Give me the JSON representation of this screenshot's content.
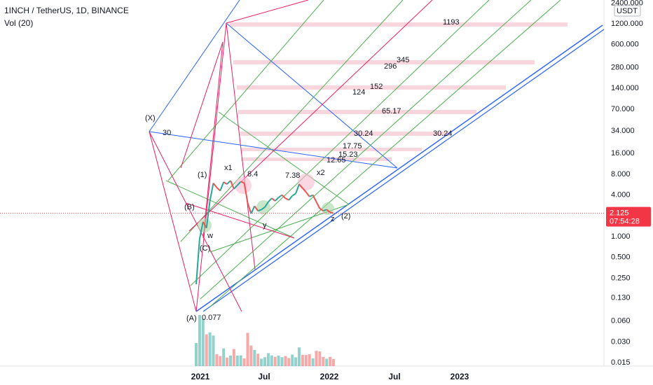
{
  "header": {
    "title": "1INCH / TetherUS, 1D, BINANCE",
    "volume_label": "Vol (20)"
  },
  "price_axis": {
    "currency_label": "USDT",
    "current_price": "2.125",
    "countdown": "07:54:28",
    "current_price_color": "#f23645"
  },
  "chart_data": {
    "type": "line",
    "scale": "log",
    "ylim": [
      0.012,
      2700
    ],
    "y_ticks": [
      "2400.000",
      "1200.000",
      "600.000",
      "280.000",
      "140.000",
      "70.000",
      "34.000",
      "16.000",
      "8.000",
      "4.000",
      "2.000",
      "1.000",
      "0.500",
      "0.250",
      "0.130",
      "0.060",
      "0.030",
      "0.015"
    ],
    "x_ticks": [
      "2021",
      "Jul",
      "2022",
      "Jul",
      "2023"
    ],
    "current_price": 2.125,
    "target_levels": [
      {
        "label": "1193",
        "value": 1193
      },
      {
        "label": "345",
        "value": 345
      },
      {
        "label": "296",
        "value": 296
      },
      {
        "label": "152",
        "value": 152
      },
      {
        "label": "124",
        "value": 124
      },
      {
        "label": "65.17",
        "value": 65.17
      },
      {
        "label": "30.24",
        "value": 30.24
      },
      {
        "label": "30.24",
        "value": 30.24
      },
      {
        "label": "17.75",
        "value": 17.75
      },
      {
        "label": "15.23",
        "value": 15.23
      },
      {
        "label": "12.65",
        "value": 12.65
      }
    ],
    "wave_labels": [
      "(X)",
      "30",
      "(1)",
      "x1",
      "8.4",
      "7.38",
      "x2",
      "(B)",
      "w",
      "(C)",
      "y",
      "z",
      "(2)",
      "(A)",
      "0.077"
    ],
    "series": [
      {
        "values": [
          0.2,
          0.9,
          1.6,
          1.3,
          3.2,
          5.8,
          5.0,
          4.5,
          6.0,
          5.6,
          6.3,
          4.8,
          5.4,
          6.1,
          5.8,
          3.0,
          2.1,
          2.7,
          2.3,
          2.4,
          2.6,
          3.1,
          3.5,
          3.2,
          3.6,
          3.9,
          3.5,
          3.3,
          3.8,
          4.1,
          5.6,
          4.9,
          4.3,
          3.7,
          3.9,
          3.1,
          2.5,
          2.3,
          2.4,
          2.2,
          2.125
        ]
      }
    ]
  }
}
